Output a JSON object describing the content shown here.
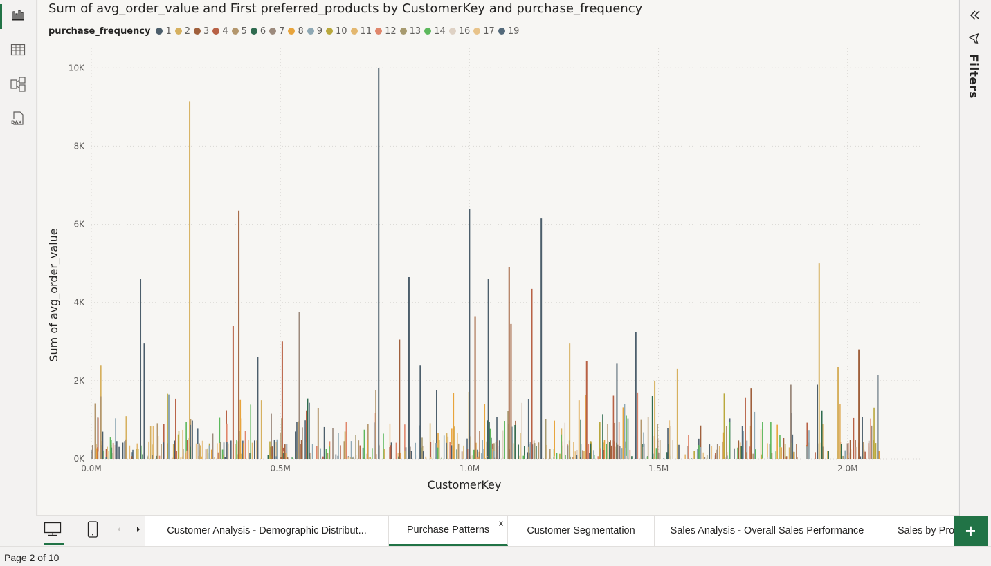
{
  "chart_data": {
    "type": "bar",
    "title": "Sum of avg_order_value and First preferred_products by CustomerKey and purchase_frequency",
    "xlabel": "CustomerKey",
    "ylabel": "Sum of avg_order_value",
    "xlim": [
      0,
      2200000
    ],
    "ylim": [
      0,
      10500
    ],
    "x_ticks": [
      0,
      500000,
      1000000,
      1500000,
      2000000
    ],
    "x_tick_labels": [
      "0.0M",
      "0.5M",
      "1.0M",
      "1.5M",
      "2.0M"
    ],
    "y_ticks": [
      0,
      2000,
      4000,
      6000,
      8000,
      10000
    ],
    "y_tick_labels": [
      "0K",
      "2K",
      "4K",
      "6K",
      "8K",
      "10K"
    ],
    "grid": true,
    "legend_title": "purchase_frequency",
    "legend_position": "top-left",
    "series": [
      {
        "name": "1",
        "color": "#4c5e6b",
        "x": [
          130000,
          140000,
          440000,
          760000,
          840000,
          1000000,
          1050000,
          1190000,
          1440000,
          1390000,
          1920000,
          2080000,
          540000,
          870000
        ],
        "values": [
          4600,
          2950,
          2600,
          10000,
          4650,
          6400,
          4600,
          6150,
          3250,
          2450,
          1900,
          2150,
          700,
          2400
        ]
      },
      {
        "name": "2",
        "color": "#d6b05e",
        "x": [
          25000,
          260000,
          1265000,
          1925000,
          1975000,
          1490000,
          1550000,
          450000
        ],
        "values": [
          2400,
          9150,
          2950,
          5000,
          2350,
          2000,
          2300,
          1500
        ]
      },
      {
        "name": "3",
        "color": "#a0603c",
        "x": [
          390000,
          815000,
          1015000,
          1105000,
          1110000,
          1745000,
          2030000
        ],
        "values": [
          6350,
          3050,
          3650,
          4900,
          3450,
          1800,
          2800
        ]
      },
      {
        "name": "4",
        "color": "#b86145",
        "x": [
          375000,
          505000,
          1165000,
          1310000
        ],
        "values": [
          3400,
          3000,
          4350,
          2500
        ]
      },
      {
        "name": "5",
        "color": "#b3966c",
        "x": [
          25000,
          600000
        ],
        "values": [
          1600,
          1300
        ]
      },
      {
        "name": "7",
        "color": "#9c8a7c",
        "x": [
          550000,
          1850000
        ],
        "values": [
          3750,
          1900
        ]
      },
      {
        "name": "9",
        "color": "#8ea8b4",
        "x": [
          205000,
          1410000
        ],
        "values": [
          1650,
          1400
        ]
      },
      {
        "name": "11",
        "color": "#e3b76f",
        "x": [
          1290000,
          1980000
        ],
        "values": [
          1500,
          1400
        ]
      }
    ],
    "note_series_shown_only": [
      "6",
      "8",
      "10",
      "12",
      "13",
      "14",
      "16",
      "17",
      "19"
    ]
  },
  "legend": {
    "title": "purchase_frequency",
    "items": [
      {
        "label": "1",
        "color": "#4c5e6b"
      },
      {
        "label": "2",
        "color": "#d6b05e"
      },
      {
        "label": "3",
        "color": "#a0603c"
      },
      {
        "label": "4",
        "color": "#b86145"
      },
      {
        "label": "5",
        "color": "#b3966c"
      },
      {
        "label": "6",
        "color": "#2f6b4f"
      },
      {
        "label": "7",
        "color": "#9c8a7c"
      },
      {
        "label": "8",
        "color": "#e8a43b"
      },
      {
        "label": "9",
        "color": "#8ea8b4"
      },
      {
        "label": "10",
        "color": "#b9a83c"
      },
      {
        "label": "11",
        "color": "#e3b76f"
      },
      {
        "label": "12",
        "color": "#e0866b"
      },
      {
        "label": "13",
        "color": "#a79a6f"
      },
      {
        "label": "14",
        "color": "#5cb85c"
      },
      {
        "label": "16",
        "color": "#ded1c4"
      },
      {
        "label": "17",
        "color": "#e8c38a"
      },
      {
        "label": "19",
        "color": "#53697a"
      }
    ]
  },
  "right_pane": {
    "filters_label": "Filters"
  },
  "tabs": [
    {
      "label": "Customer Analysis - Demographic Distribut...",
      "active": false
    },
    {
      "label": "Purchase Patterns",
      "active": true,
      "close": "x"
    },
    {
      "label": "Customer Segmentation",
      "active": false
    },
    {
      "label": "Sales Analysis - Overall Sales Performance",
      "active": false
    },
    {
      "label": "Sales by Pro",
      "active": false
    }
  ],
  "status": {
    "page_count": "Page 2 of 10"
  },
  "add_page_label": "+",
  "colors": {
    "accent": "#217346"
  }
}
